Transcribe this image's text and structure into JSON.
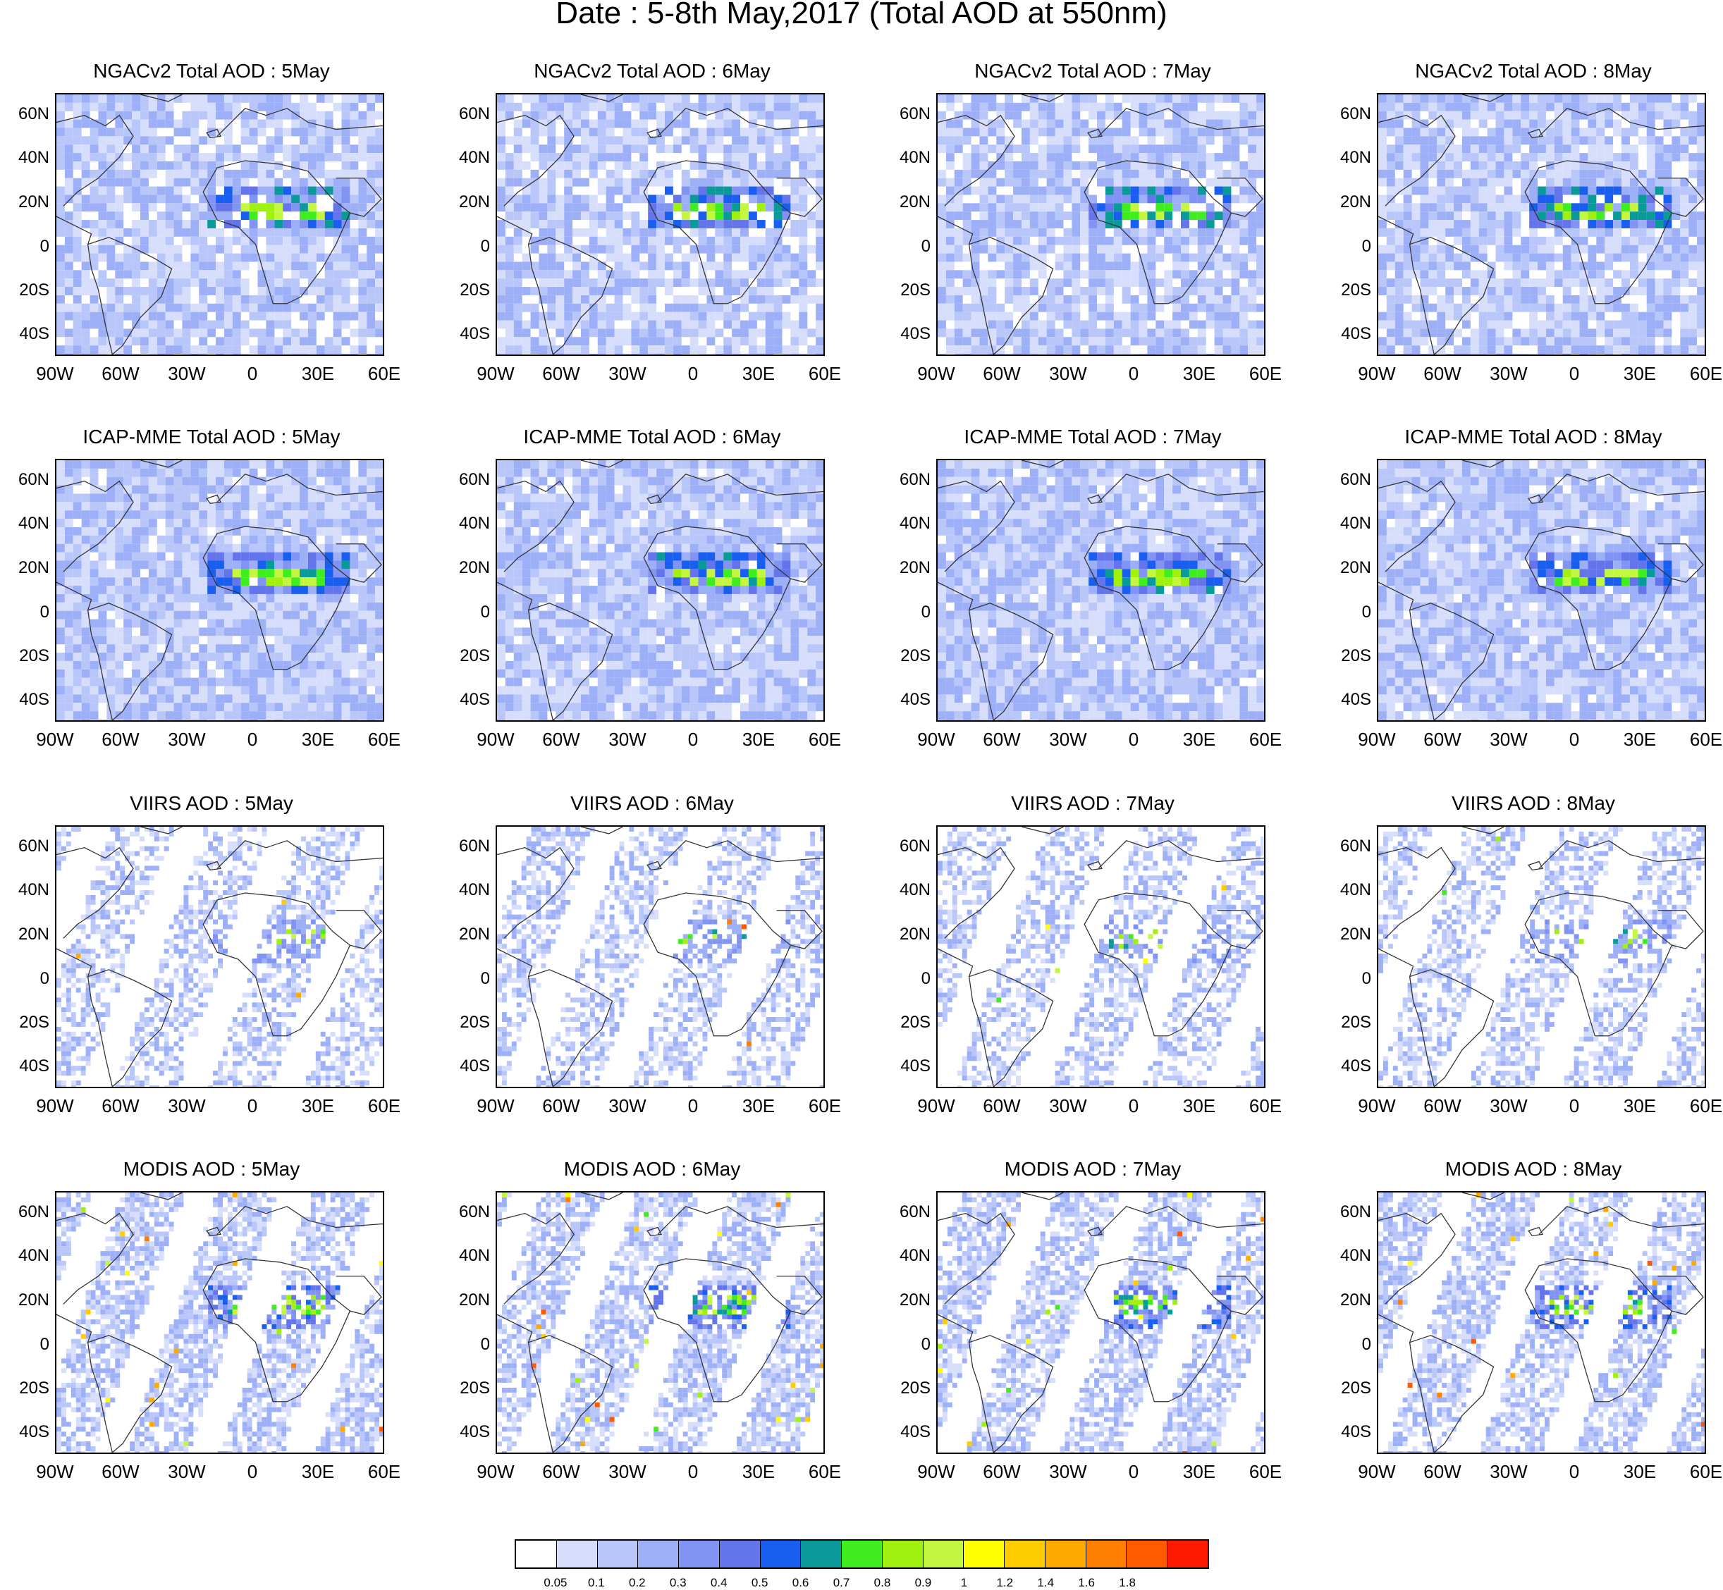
{
  "title": "Date : 5-8th May,2017 (Total AOD at 550nm)",
  "rows": [
    {
      "product": "NGACv2 Total AOD",
      "intensity": 0.8,
      "fill": 0.85,
      "sparse": false
    },
    {
      "product": "ICAP-MME Total AOD",
      "intensity": 0.7,
      "fill": 0.95,
      "sparse": false
    },
    {
      "product": "VIIRS AOD",
      "intensity": 0.25,
      "fill": 0.55,
      "sparse": true
    },
    {
      "product": "MODIS AOD",
      "intensity": 0.6,
      "fill": 0.7,
      "sparse": true
    }
  ],
  "panels": [
    {
      "title": "NGACv2 Total AOD : 5May"
    },
    {
      "title": "NGACv2 Total AOD : 6May"
    },
    {
      "title": "NGACv2 Total AOD : 7May"
    },
    {
      "title": "NGACv2 Total AOD : 8May"
    },
    {
      "title": "ICAP-MME Total AOD : 5May"
    },
    {
      "title": "ICAP-MME Total AOD : 6May"
    },
    {
      "title": "ICAP-MME Total AOD : 7May"
    },
    {
      "title": "ICAP-MME Total AOD : 8May"
    },
    {
      "title": "VIIRS AOD : 5May"
    },
    {
      "title": "VIIRS AOD : 6May"
    },
    {
      "title": "VIIRS AOD : 7May"
    },
    {
      "title": "VIIRS AOD : 8May"
    },
    {
      "title": "MODIS AOD : 5May"
    },
    {
      "title": "MODIS AOD : 6May"
    },
    {
      "title": "MODIS AOD : 7May"
    },
    {
      "title": "MODIS AOD : 8May"
    }
  ],
  "lat_labels": [
    "60N",
    "40N",
    "20N",
    "0",
    "20S",
    "40S"
  ],
  "lon_labels": [
    "90W",
    "60W",
    "30W",
    "0",
    "30E",
    "60E"
  ],
  "colorbar": {
    "colors": [
      "#ffffff",
      "#d7defc",
      "#b8c6f9",
      "#9db0f7",
      "#8193f3",
      "#6474ea",
      "#1a5ef0",
      "#0a9a9a",
      "#40ee20",
      "#a0f010",
      "#c4f840",
      "#ffff00",
      "#ffcc00",
      "#ffaa00",
      "#ff8000",
      "#ff5a00",
      "#ff1a00"
    ],
    "labels": [
      "0.05",
      "0.1",
      "0.2",
      "0.3",
      "0.4",
      "0.5",
      "0.6",
      "0.7",
      "0.8",
      "0.9",
      "1",
      "1.2",
      "1.4",
      "1.6",
      "1.8"
    ]
  }
}
